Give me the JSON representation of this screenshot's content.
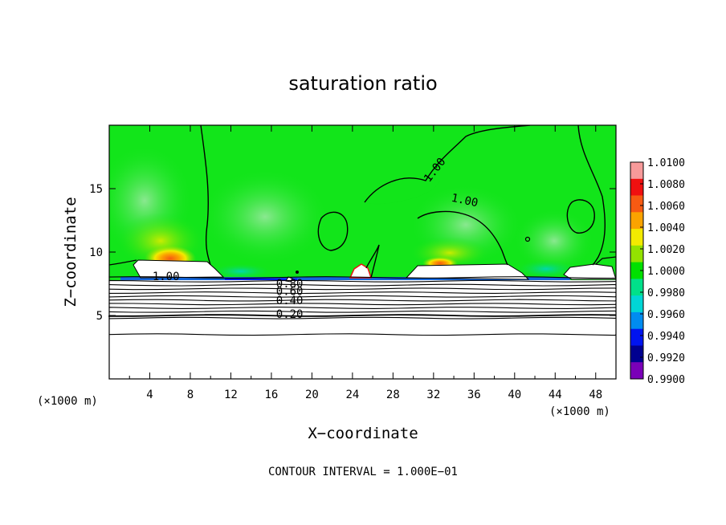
{
  "chart_data": {
    "type": "heatmap",
    "title": "saturation ratio",
    "xlabel": "X−coordinate",
    "ylabel": "Z−coordinate",
    "x_unit_left": "(×1000 m)",
    "x_unit_right": "(×1000 m)",
    "footer": "CONTOUR INTERVAL = 1.000E−01",
    "xlim": [
      0,
      50
    ],
    "ylim": [
      0,
      20
    ],
    "x_ticks": [
      4,
      8,
      12,
      16,
      20,
      24,
      28,
      32,
      36,
      40,
      44,
      48
    ],
    "y_ticks": [
      5,
      10,
      15
    ],
    "contour_labels": [
      {
        "text": "1.00",
        "x": 5.6,
        "y": 7.8
      },
      {
        "text": "0.80",
        "x": 17.8,
        "y": 7.2
      },
      {
        "text": "0.60",
        "x": 17.8,
        "y": 6.6
      },
      {
        "text": "0.40",
        "x": 17.8,
        "y": 5.9
      },
      {
        "text": "0.20",
        "x": 17.8,
        "y": 4.8
      },
      {
        "text": "1.00",
        "x": 32.4,
        "y": 16.3
      },
      {
        "text": "1.00",
        "x": 35.0,
        "y": 13.8
      }
    ],
    "colorbar": {
      "levels": [
        "1.0100",
        "1.0080",
        "1.0060",
        "1.0040",
        "1.0020",
        "1.0000",
        "0.9980",
        "0.9960",
        "0.9940",
        "0.9920",
        "0.9900"
      ],
      "colors": [
        "#f79a9a",
        "#f01010",
        "#f75a12",
        "#fba300",
        "#f3ea00",
        "#93e200",
        "#00e000",
        "#00e08a",
        "#00d6d6",
        "#008cf0",
        "#0014f0",
        "#000090",
        "#7a00b8"
      ]
    },
    "colors": {
      "background_green": "#12e51a",
      "light_green": "#74ea82",
      "blue_band": "#1550ff",
      "cloud_white": "#ffffff"
    }
  }
}
